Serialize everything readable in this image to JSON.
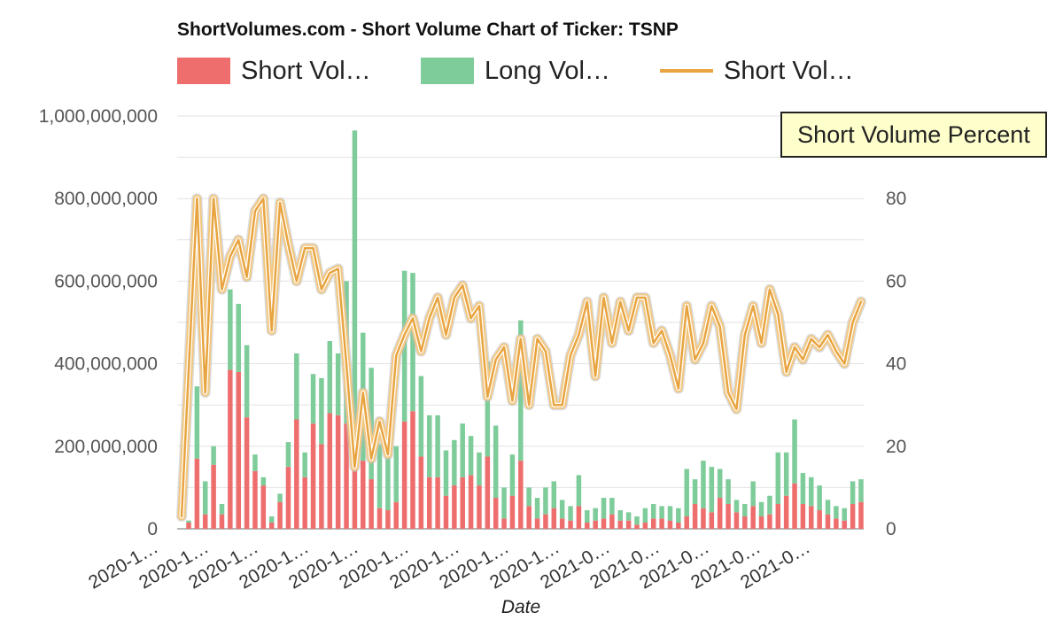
{
  "title": "ShortVolumes.com - Short Volume Chart of Ticker: TSNP",
  "legend": [
    {
      "label": "Short Vol…",
      "color": "#ee6e6e",
      "kind": "bar"
    },
    {
      "label": "Long Vol…",
      "color": "#7fcc9b",
      "kind": "bar"
    },
    {
      "label": "Short Vol…",
      "color": "#e8a440",
      "kind": "line"
    }
  ],
  "tooltip": "Short Volume Percent",
  "chart_data": {
    "type": "bar",
    "title": "ShortVolumes.com - Short Volume Chart of Ticker: TSNP",
    "xlabel": "Date",
    "ylabel_left": "",
    "ylabel_right": "",
    "ylim": [
      0,
      1000000000
    ],
    "ylim_right": [
      0,
      100
    ],
    "left_ticks": [
      "0",
      "200,000,000",
      "400,000,000",
      "600,000,000",
      "800,000,000",
      "1,000,000,000"
    ],
    "right_ticks": [
      "0",
      "20",
      "40",
      "60",
      "80"
    ],
    "x_tick_labels": [
      "2020-1…",
      "2020-1…",
      "2020-1…",
      "2020-1…",
      "2020-1…",
      "2020-1…",
      "2020-1…",
      "2020-1…",
      "2020-1…",
      "2021-0…",
      "2021-0…",
      "2021-0…",
      "2021-0…",
      "2021-0…"
    ],
    "stacked": true,
    "series": [
      {
        "name": "Short Volume",
        "color": "#ee6e6e",
        "values": [
          15000000,
          170000000,
          35000000,
          155000000,
          35000000,
          385000000,
          380000000,
          270000000,
          140000000,
          105000000,
          15000000,
          65000000,
          150000000,
          265000000,
          125000000,
          255000000,
          205000000,
          280000000,
          275000000,
          255000000,
          145000000,
          165000000,
          120000000,
          50000000,
          45000000,
          65000000,
          260000000,
          285000000,
          175000000,
          125000000,
          125000000,
          80000000,
          105000000,
          125000000,
          130000000,
          105000000,
          175000000,
          75000000,
          25000000,
          80000000,
          165000000,
          55000000,
          25000000,
          35000000,
          50000000,
          25000000,
          20000000,
          55000000,
          15000000,
          20000000,
          25000000,
          35000000,
          20000000,
          20000000,
          10000000,
          15000000,
          25000000,
          25000000,
          20000000,
          15000000,
          30000000,
          60000000,
          50000000,
          40000000,
          75000000,
          60000000,
          40000000,
          30000000,
          55000000,
          30000000,
          35000000,
          60000000,
          80000000,
          110000000,
          60000000,
          55000000,
          45000000,
          35000000,
          25000000,
          20000000,
          60000000,
          65000000
        ]
      },
      {
        "name": "Long Volume",
        "color": "#7fcc9b",
        "values": [
          5000000,
          175000000,
          80000000,
          45000000,
          25000000,
          195000000,
          165000000,
          175000000,
          40000000,
          20000000,
          15000000,
          20000000,
          60000000,
          160000000,
          60000000,
          120000000,
          160000000,
          175000000,
          150000000,
          345000000,
          820000000,
          310000000,
          270000000,
          155000000,
          155000000,
          135000000,
          365000000,
          335000000,
          195000000,
          150000000,
          150000000,
          110000000,
          110000000,
          130000000,
          95000000,
          80000000,
          230000000,
          175000000,
          75000000,
          100000000,
          340000000,
          45000000,
          50000000,
          65000000,
          65000000,
          45000000,
          35000000,
          75000000,
          30000000,
          30000000,
          50000000,
          40000000,
          25000000,
          20000000,
          20000000,
          35000000,
          35000000,
          30000000,
          35000000,
          35000000,
          115000000,
          60000000,
          115000000,
          110000000,
          70000000,
          60000000,
          30000000,
          30000000,
          60000000,
          35000000,
          45000000,
          125000000,
          105000000,
          155000000,
          75000000,
          70000000,
          60000000,
          35000000,
          30000000,
          30000000,
          55000000,
          55000000
        ]
      },
      {
        "name": "Short Volume Percent",
        "color": "#e8a440",
        "axis": "right",
        "values": [
          3,
          80,
          33,
          80,
          58,
          66,
          70,
          61,
          77,
          80,
          48,
          79,
          69,
          60,
          68,
          68,
          58,
          62,
          63,
          40,
          15,
          33,
          17,
          26,
          18,
          42,
          47,
          51,
          43,
          51,
          56,
          47,
          56,
          59,
          51,
          54,
          32,
          41,
          44,
          31,
          46,
          30,
          46,
          43,
          30,
          30,
          42,
          47,
          55,
          37,
          56,
          45,
          55,
          48,
          56,
          56,
          45,
          48,
          42,
          34,
          54,
          41,
          45,
          54,
          49,
          33,
          29,
          47,
          54,
          45,
          58,
          52,
          38,
          44,
          41,
          46,
          44,
          47,
          43,
          40,
          50,
          55
        ]
      }
    ]
  }
}
